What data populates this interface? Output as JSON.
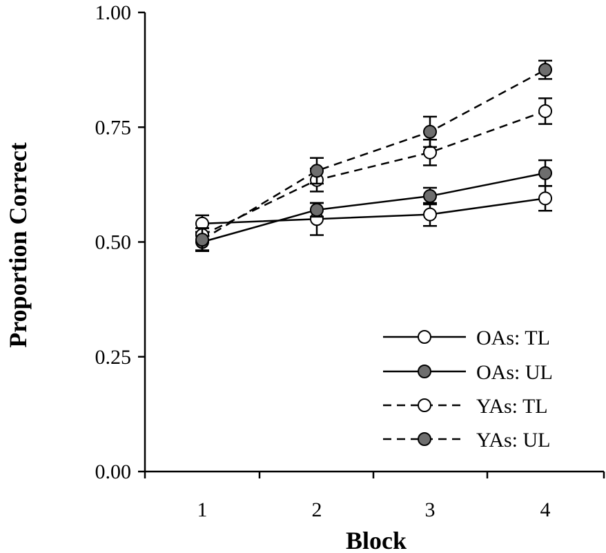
{
  "chart_data": {
    "type": "line",
    "title": "",
    "xlabel": "Block",
    "ylabel": "Proportion Correct",
    "x": [
      1,
      2,
      3,
      4
    ],
    "x_tick_labels": [
      "1",
      "2",
      "3",
      "4"
    ],
    "ylim": [
      0,
      1
    ],
    "y_tick_labels": [
      "0.00",
      "0.25",
      "0.50",
      "0.75",
      "1.00"
    ],
    "grid": false,
    "legend_position": "bottom-right",
    "series": [
      {
        "name": "OAs: TL",
        "line_style": "solid",
        "marker_fill": "#ffffff",
        "values": [
          0.54,
          0.55,
          0.56,
          0.595
        ],
        "errors": [
          0.018,
          0.035,
          0.025,
          0.027
        ]
      },
      {
        "name": "OAs: UL",
        "line_style": "solid",
        "marker_fill": "#6e6e6e",
        "values": [
          0.5,
          0.57,
          0.6,
          0.65
        ],
        "errors": [
          0.018,
          0.015,
          0.018,
          0.028
        ]
      },
      {
        "name": "YAs: TL",
        "line_style": "dashed",
        "marker_fill": "#ffffff",
        "values": [
          0.515,
          0.635,
          0.695,
          0.785
        ],
        "errors": [
          0.015,
          0.025,
          0.028,
          0.028
        ]
      },
      {
        "name": "YAs: UL",
        "line_style": "dashed",
        "marker_fill": "#6e6e6e",
        "values": [
          0.505,
          0.655,
          0.74,
          0.875
        ],
        "errors": [
          0.025,
          0.028,
          0.033,
          0.02
        ]
      }
    ]
  }
}
